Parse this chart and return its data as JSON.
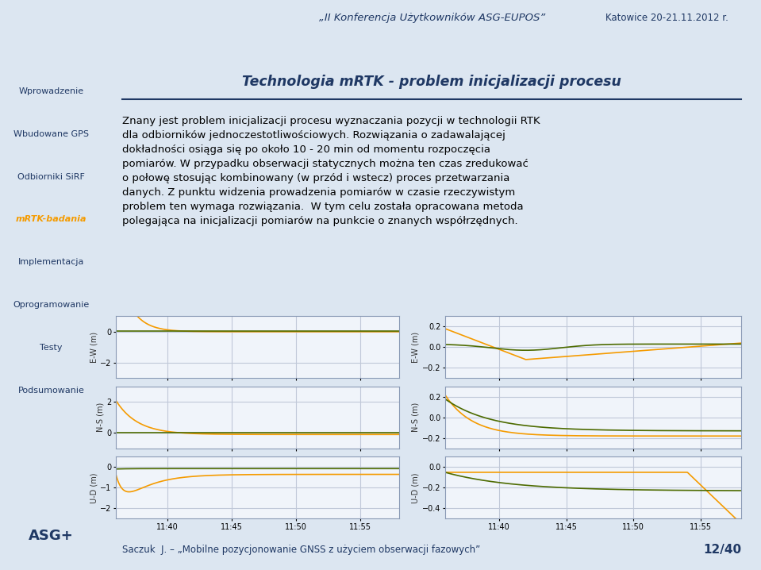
{
  "slide_bg": "#dce6f1",
  "content_bg": "#ffffff",
  "title_text": "Technologia mRTK - problem inicjalizacji procesu",
  "title_color": "#1f3864",
  "header_top": "„II Konferencja Użytkowników ASG-EUPOS”",
  "header_right": "Katowice 20-21.11.2012 r.",
  "nav_items": [
    "Wprowadzenie",
    "Wbudowane GPS",
    "Odbiorniki SiRF",
    "mRTK-badania",
    "Implementacja",
    "Oprogramowanie",
    "Testy",
    "Podsumowanie"
  ],
  "nav_active": "mRTK-badania",
  "body_text_lines": [
    "Znany jest problem inicjalizacji procesu wyznaczania pozycji w technologii RTK",
    "dla odbiorników jednoczestotliwościowych. Rozwiązania o zadawalającej",
    "dokładności osiąga się po około 10 - 20 min od momentu rozpoczęcia",
    "pomiarów. W przypadku obserwacji statycznych można ten czas zredukować",
    "o połowę stosując kombinowany (w przód i wstecz) proces przetwarzania",
    "danych. Z punktu widzenia prowadzenia pomiarów w czasie rzeczywistym",
    "problem ten wymaga rozwiązania.  W tym celu została opracowana metoda",
    "polegająca na inicjalizacji pomiarów na punkcie o znanych współrzędnych."
  ],
  "footer_text": "Saczuk  J. – „Mobilne pozycjonowanie GNSS z użyciem obserwacji fazowych”",
  "footer_page": "12/40",
  "orange_color": "#f59b00",
  "green_color": "#4d6b00",
  "plot_bg": "#f0f4fa",
  "grid_color": "#c0c8d8",
  "plot_border_color": "#8a9ab5"
}
